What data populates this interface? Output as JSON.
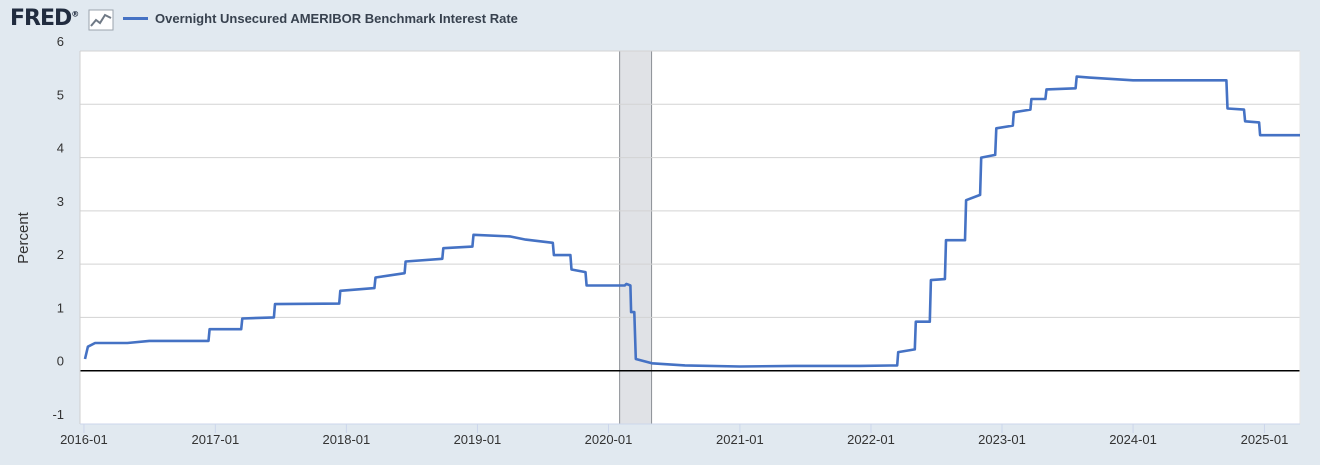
{
  "header": {
    "logo_text": "FRED",
    "logo_mark": "®",
    "logo_icon": "line-graph-icon"
  },
  "chart_data": {
    "type": "line",
    "title": "",
    "xlabel": "",
    "ylabel": "Percent",
    "series": [
      {
        "name": "Overnight Unsecured AMERIBOR Benchmark Interest Rate",
        "color": "#4572c4",
        "points": [
          [
            "2016-01-04",
            0.22
          ],
          [
            "2016-01-12",
            0.45
          ],
          [
            "2016-02-01",
            0.52
          ],
          [
            "2016-05-01",
            0.52
          ],
          [
            "2016-07-01",
            0.56
          ],
          [
            "2016-12-13",
            0.56
          ],
          [
            "2016-12-16",
            0.78
          ],
          [
            "2017-03-14",
            0.78
          ],
          [
            "2017-03-17",
            0.98
          ],
          [
            "2017-06-13",
            1.0
          ],
          [
            "2017-06-16",
            1.25
          ],
          [
            "2017-12-12",
            1.26
          ],
          [
            "2017-12-15",
            1.5
          ],
          [
            "2018-03-20",
            1.55
          ],
          [
            "2018-03-23",
            1.75
          ],
          [
            "2018-06-12",
            1.83
          ],
          [
            "2018-06-15",
            2.05
          ],
          [
            "2018-09-25",
            2.1
          ],
          [
            "2018-09-28",
            2.3
          ],
          [
            "2018-12-18",
            2.33
          ],
          [
            "2018-12-21",
            2.55
          ],
          [
            "2019-04-01",
            2.52
          ],
          [
            "2019-05-15",
            2.46
          ],
          [
            "2019-07-30",
            2.4
          ],
          [
            "2019-08-02",
            2.17
          ],
          [
            "2019-09-17",
            2.17
          ],
          [
            "2019-09-20",
            1.9
          ],
          [
            "2019-10-29",
            1.85
          ],
          [
            "2019-11-01",
            1.6
          ],
          [
            "2020-02-15",
            1.6
          ],
          [
            "2020-02-20",
            1.63
          ],
          [
            "2020-03-02",
            1.6
          ],
          [
            "2020-03-04",
            1.1
          ],
          [
            "2020-03-13",
            1.1
          ],
          [
            "2020-03-17",
            0.22
          ],
          [
            "2020-05-01",
            0.14
          ],
          [
            "2020-08-01",
            0.1
          ],
          [
            "2021-01-01",
            0.08
          ],
          [
            "2021-06-01",
            0.09
          ],
          [
            "2021-12-01",
            0.09
          ],
          [
            "2022-03-15",
            0.1
          ],
          [
            "2022-03-18",
            0.35
          ],
          [
            "2022-05-03",
            0.4
          ],
          [
            "2022-05-06",
            0.92
          ],
          [
            "2022-06-14",
            0.92
          ],
          [
            "2022-06-17",
            1.7
          ],
          [
            "2022-07-26",
            1.72
          ],
          [
            "2022-07-29",
            2.45
          ],
          [
            "2022-09-20",
            2.45
          ],
          [
            "2022-09-23",
            3.2
          ],
          [
            "2022-11-01",
            3.3
          ],
          [
            "2022-11-04",
            4.0
          ],
          [
            "2022-12-13",
            4.05
          ],
          [
            "2022-12-16",
            4.55
          ],
          [
            "2023-01-31",
            4.6
          ],
          [
            "2023-02-03",
            4.85
          ],
          [
            "2023-03-21",
            4.9
          ],
          [
            "2023-03-24",
            5.1
          ],
          [
            "2023-05-02",
            5.1
          ],
          [
            "2023-05-05",
            5.28
          ],
          [
            "2023-07-25",
            5.3
          ],
          [
            "2023-07-28",
            5.52
          ],
          [
            "2023-09-01",
            5.5
          ],
          [
            "2024-01-01",
            5.45
          ],
          [
            "2024-06-01",
            5.45
          ],
          [
            "2024-09-17",
            5.45
          ],
          [
            "2024-09-20",
            4.92
          ],
          [
            "2024-11-05",
            4.9
          ],
          [
            "2024-11-08",
            4.68
          ],
          [
            "2024-12-17",
            4.66
          ],
          [
            "2024-12-20",
            4.42
          ],
          [
            "2025-04-10",
            4.42
          ]
        ]
      }
    ],
    "x_range": [
      "2015-12-21",
      "2025-04-10"
    ],
    "x_ticks": [
      "2016-01",
      "2017-01",
      "2018-01",
      "2019-01",
      "2020-01",
      "2021-01",
      "2022-01",
      "2023-01",
      "2024-01",
      "2025-01"
    ],
    "y_ticks": [
      -1,
      0,
      1,
      2,
      3,
      4,
      5,
      6
    ],
    "ylim": [
      -1,
      6
    ],
    "recession_shading": [
      [
        "2020-02-01",
        "2020-04-30"
      ]
    ],
    "grid": true,
    "legend_position": "top-left",
    "colors": {
      "line": "#4572c4",
      "background": "#e1e9f0",
      "plot": "#ffffff",
      "recession": "#e0e2e6",
      "zero_line": "#000000"
    }
  }
}
